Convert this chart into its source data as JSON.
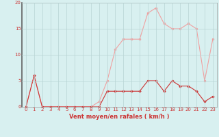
{
  "x": [
    0,
    1,
    2,
    3,
    4,
    5,
    6,
    7,
    8,
    9,
    10,
    11,
    12,
    13,
    14,
    15,
    16,
    17,
    18,
    19,
    20,
    21,
    22,
    23
  ],
  "y_moyen": [
    0,
    6,
    0,
    0,
    0,
    0,
    0,
    0,
    0,
    0,
    3,
    3,
    3,
    3,
    3,
    5,
    5,
    3,
    5,
    4,
    4,
    3,
    1,
    2
  ],
  "y_rafales": [
    0,
    6,
    0,
    0,
    0,
    0,
    0,
    0,
    0,
    1,
    5,
    11,
    13,
    13,
    13,
    18,
    19,
    16,
    15,
    15,
    16,
    15,
    5,
    13
  ],
  "color_moyen": "#cc3333",
  "color_rafales": "#f0a0a0",
  "bg_color": "#d8f0f0",
  "grid_color": "#b8d4d4",
  "xlabel": "Vent moyen/en rafales ( km/h )",
  "xlabel_color": "#cc3333",
  "tick_color": "#cc3333",
  "axis_color": "#999999",
  "ylim": [
    0,
    20
  ],
  "xlim_min": -0.5,
  "xlim_max": 23.5,
  "yticks": [
    0,
    5,
    10,
    15,
    20
  ],
  "xticks": [
    0,
    1,
    2,
    3,
    4,
    5,
    6,
    7,
    8,
    9,
    10,
    11,
    12,
    13,
    14,
    15,
    16,
    17,
    18,
    19,
    20,
    21,
    22,
    23
  ],
  "tick_fontsize": 5.0,
  "xlabel_fontsize": 6.0
}
